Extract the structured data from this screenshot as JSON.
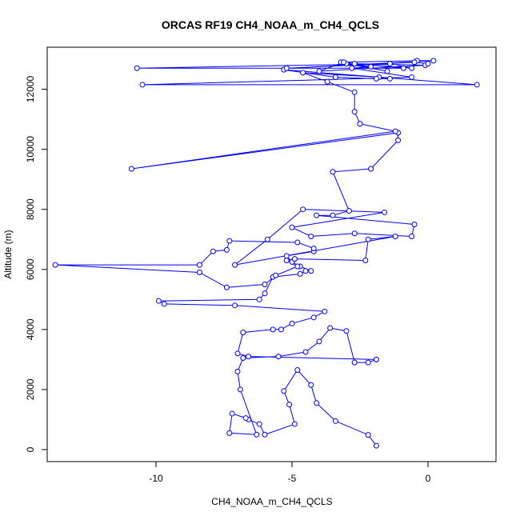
{
  "chart_data": {
    "type": "line",
    "title": "ORCAS RF19 CH4_NOAA_m_CH4_QCLS",
    "xlabel": "CH4_NOAA_m_CH4_QCLS",
    "ylabel": "Altitude (m)",
    "xlim": [
      -14,
      2.5
    ],
    "ylim": [
      -400,
      13400
    ],
    "xticks": [
      -10,
      -5,
      0
    ],
    "yticks": [
      0,
      2000,
      4000,
      6000,
      8000,
      10000,
      12000
    ],
    "xtick_labels": [
      "-10",
      "-5",
      "0"
    ],
    "ytick_labels": [
      "0",
      "2000",
      "4000",
      "6000",
      "8000",
      "10000",
      "12000"
    ],
    "line_color": "#0000ff",
    "marker": "open-circle",
    "grid": false,
    "series": [
      {
        "x": [
          -1.9,
          -2.2,
          -3.4,
          -4.1,
          -4.3,
          -4.8,
          -5.3,
          -5.1,
          -4.9,
          -6.0,
          -6.2,
          -6.6,
          -6.7,
          -7.2,
          -7.3,
          -6.3,
          -6.9,
          -7.0,
          -6.8,
          -5.5,
          -4.5,
          -4.0,
          -3.6,
          -3.0,
          -2.7,
          -2.2,
          -1.9,
          -1.9,
          -6.6,
          -7.0,
          -6.8,
          -5.7,
          -5.4,
          -5.0,
          -4.2,
          -3.8,
          -7.1,
          -9.7,
          -9.9,
          -6.2,
          -6.0,
          -5.7,
          -4.7,
          -4.5,
          -4.3,
          -4.7,
          -5.0,
          -5.2,
          -4.2,
          -4.2,
          -4.8,
          -7.3,
          -7.4,
          -7.9,
          -8.4,
          -13.7,
          -8.4,
          -7.4,
          -6.0,
          -5.6,
          -4.8,
          -5.2,
          -4.9,
          -2.3,
          -2.2,
          -1.2,
          -7.1,
          -5.9,
          -4.6,
          -1.6,
          -5.0,
          -4.3,
          -2.7,
          -0.6,
          -0.5,
          -4.1,
          -3.5,
          -2.9,
          -3.5,
          -2.1,
          -1.1,
          -1.1,
          -10.9,
          -1.2,
          -2.5,
          -2.7,
          -2.7,
          -3.7,
          -4.6,
          -1.8,
          -1.4,
          -1.9,
          -3.4,
          -5.3,
          1.8,
          -10.5,
          -0.6,
          -2.8,
          -2.1,
          -3.0,
          -1.5,
          -3.2,
          -0.9,
          -10.7,
          -1.4,
          -0.6,
          -2.7,
          -0.1,
          -4.0,
          -3.1,
          -0.4,
          0.2,
          -5.2,
          -0.5,
          0.0
        ],
        "y": [
          130,
          490,
          950,
          1550,
          2150,
          2650,
          1950,
          1500,
          850,
          500,
          850,
          1000,
          1050,
          1200,
          550,
          500,
          2000,
          2600,
          3050,
          3100,
          3250,
          3600,
          4050,
          3950,
          2900,
          2900,
          3000,
          3000,
          3100,
          3200,
          3900,
          4000,
          4000,
          4200,
          4400,
          4600,
          4800,
          4850,
          4950,
          5000,
          5200,
          5750,
          5850,
          5950,
          5950,
          6100,
          6250,
          6450,
          6600,
          6700,
          6900,
          6950,
          6650,
          6600,
          6150,
          6150,
          5900,
          5400,
          5500,
          5800,
          6100,
          6300,
          6350,
          6300,
          7000,
          7100,
          6150,
          7000,
          8000,
          7900,
          7400,
          7100,
          7200,
          7100,
          7500,
          7800,
          7800,
          7950,
          9250,
          9350,
          10300,
          10550,
          9350,
          10600,
          10850,
          11250,
          11900,
          12250,
          12550,
          12400,
          12350,
          12350,
          12400,
          12650,
          12150,
          12150,
          12400,
          12700,
          12750,
          12850,
          12600,
          12900,
          12700,
          12700,
          12850,
          12700,
          12850,
          12800,
          12600,
          12900,
          12950,
          12950,
          12700,
          12900,
          12850
        ]
      }
    ]
  }
}
